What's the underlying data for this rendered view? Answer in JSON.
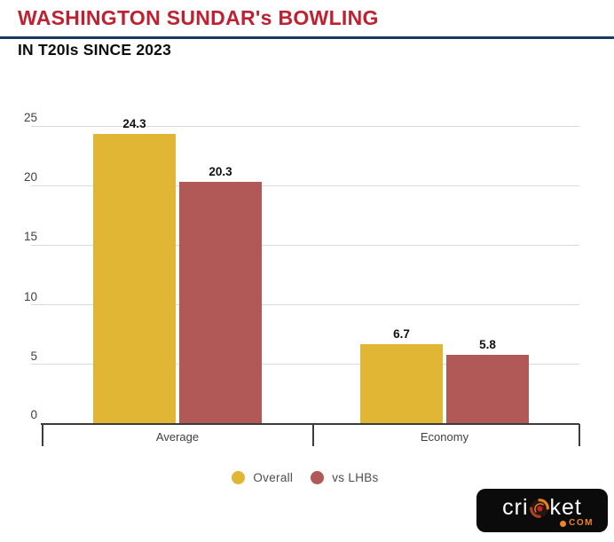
{
  "header": {
    "title": "WASHINGTON SUNDAR's BOWLING",
    "subtitle": "IN T20Is SINCE 2023"
  },
  "chart_data": {
    "type": "bar",
    "title": "WASHINGTON SUNDAR's BOWLING",
    "subtitle": "IN T20Is SINCE 2023",
    "categories": [
      "Average",
      "Economy"
    ],
    "series": [
      {
        "name": "Overall",
        "color": "#e1b634",
        "values": [
          24.3,
          6.7
        ]
      },
      {
        "name": "vs LHBs",
        "color": "#b05956",
        "values": [
          20.3,
          5.8
        ]
      }
    ],
    "y_ticks": [
      0,
      5,
      10,
      15,
      20,
      25
    ],
    "ylim": [
      0,
      25
    ],
    "grid": true,
    "legend_position": "bottom",
    "value_labels": [
      "24.3",
      "20.3",
      "6.7",
      "5.8"
    ]
  },
  "logo": {
    "text_left": "cri",
    "text_right": "ket",
    "suffix": "COM"
  },
  "colors": {
    "title": "#bf2130",
    "divider": "#1b3a5e",
    "subtitle": "#0e0e0e",
    "grid": "#d9d9d9",
    "axis": "#3c3c3c",
    "bar_overall": "#e1b634",
    "bar_vs_lhbs": "#b05956",
    "legend_text": "#4c4c4c",
    "logo_bg": "#0b0b0b",
    "logo_orange": "#f08426"
  }
}
